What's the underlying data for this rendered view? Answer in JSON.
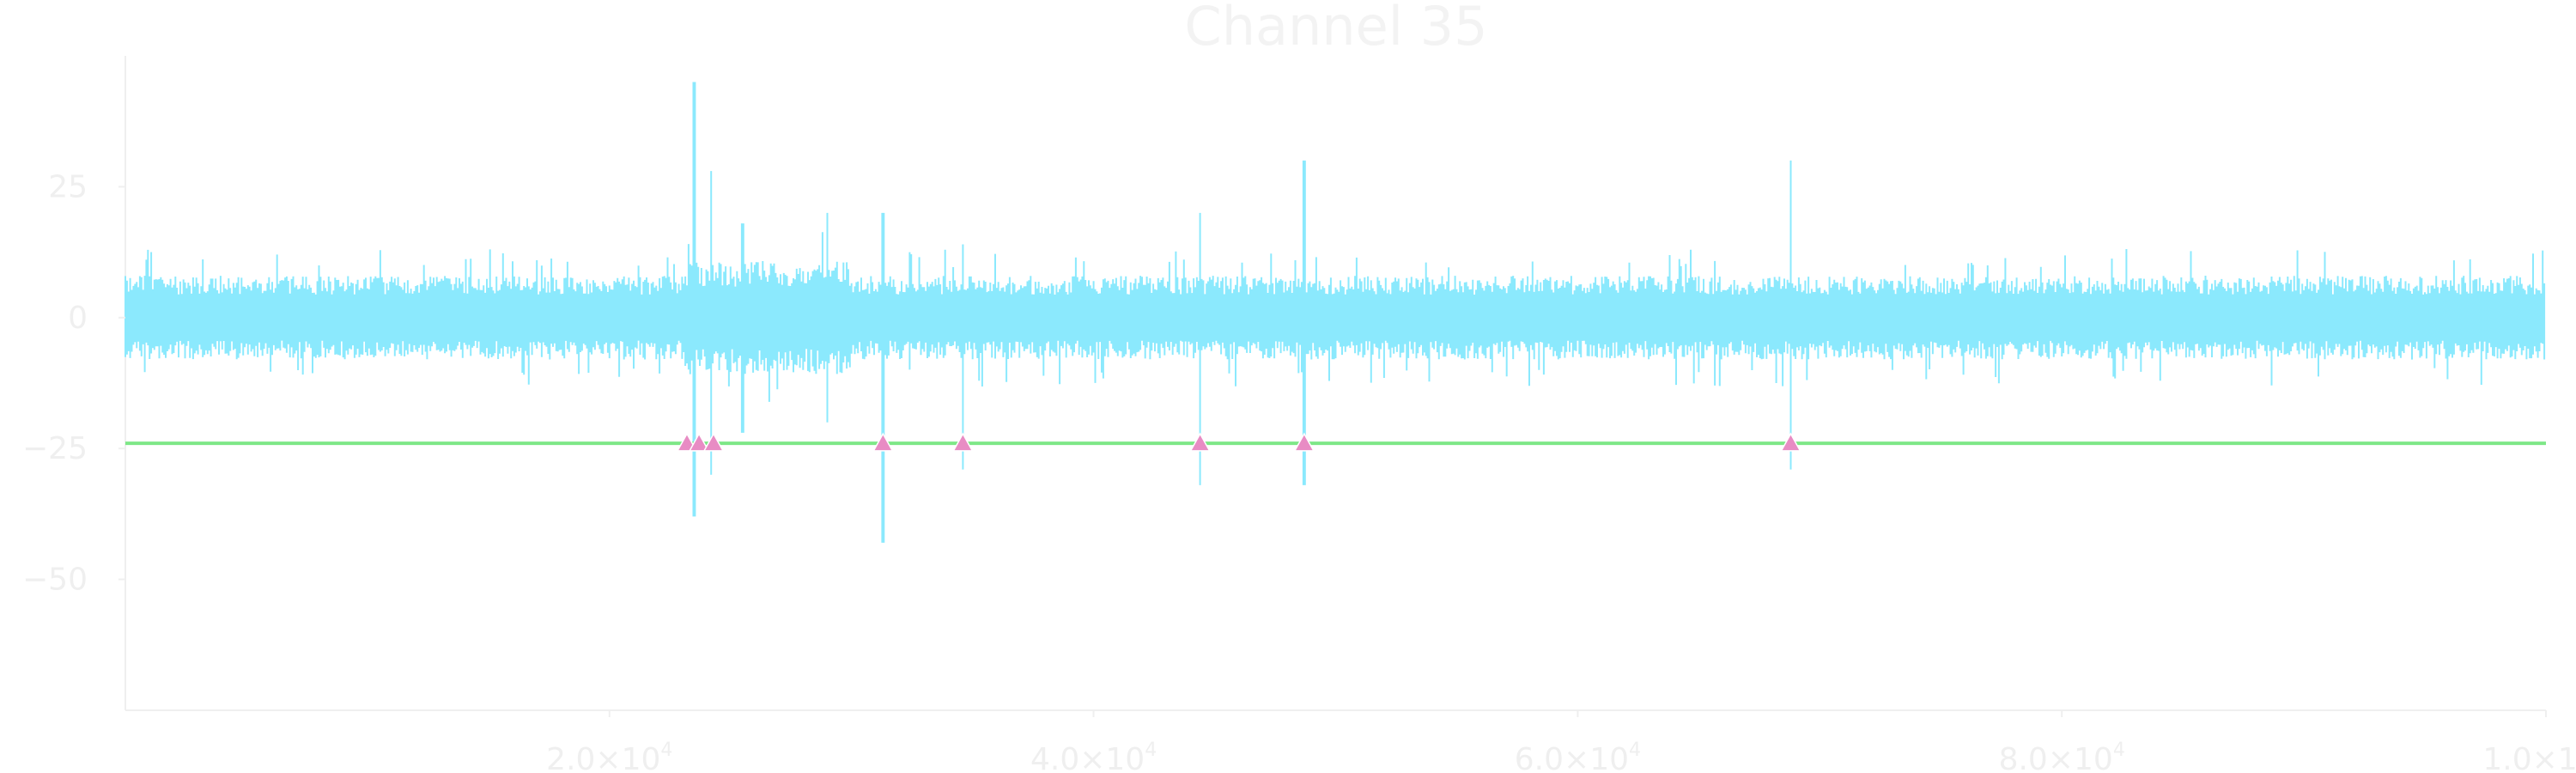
{
  "chart_data": {
    "type": "line",
    "title": "Channel 35",
    "xlabel": "",
    "ylabel": "",
    "xlim": [
      0,
      100000
    ],
    "ylim": [
      -75,
      50
    ],
    "grid": false,
    "x_ticks": [
      {
        "value": 20000,
        "mantissa": "2.0×10",
        "exponent": "4"
      },
      {
        "value": 40000,
        "mantissa": "4.0×10",
        "exponent": "4"
      },
      {
        "value": 60000,
        "mantissa": "6.0×10",
        "exponent": "4"
      },
      {
        "value": 80000,
        "mantissa": "8.0×10",
        "exponent": "4"
      },
      {
        "value": 100000,
        "mantissa": "1.0×10",
        "exponent": "5"
      }
    ],
    "y_ticks": [
      {
        "value": 25,
        "label": "25"
      },
      {
        "value": 0,
        "label": "0"
      },
      {
        "value": -25,
        "label": "−25"
      },
      {
        "value": -50,
        "label": "−50"
      }
    ],
    "series": [
      {
        "type": "line",
        "color": "#8be9fd",
        "noise_amplitude": 8,
        "noise_extreme": 12,
        "events": [
          {
            "x": 23500,
            "max": 45,
            "min": -38
          },
          {
            "x": 24200,
            "max": 28,
            "min": -30
          },
          {
            "x": 25500,
            "max": 18,
            "min": -22
          },
          {
            "x": 29000,
            "max": 20,
            "min": -20
          },
          {
            "x": 31300,
            "max": 20,
            "min": -43
          },
          {
            "x": 34600,
            "max": 14,
            "min": -29
          },
          {
            "x": 44400,
            "max": 20,
            "min": -32
          },
          {
            "x": 48700,
            "max": 30,
            "min": -32
          },
          {
            "x": 68800,
            "max": 30,
            "min": -29
          }
        ]
      },
      {
        "type": "hline",
        "color": "#7ee787",
        "y": -24
      },
      {
        "type": "scatter",
        "marker": "triangle",
        "color": "#e88cc4",
        "y": -24,
        "x": [
          23200,
          23700,
          24300,
          31300,
          34600,
          44400,
          48700,
          68800
        ]
      }
    ]
  }
}
